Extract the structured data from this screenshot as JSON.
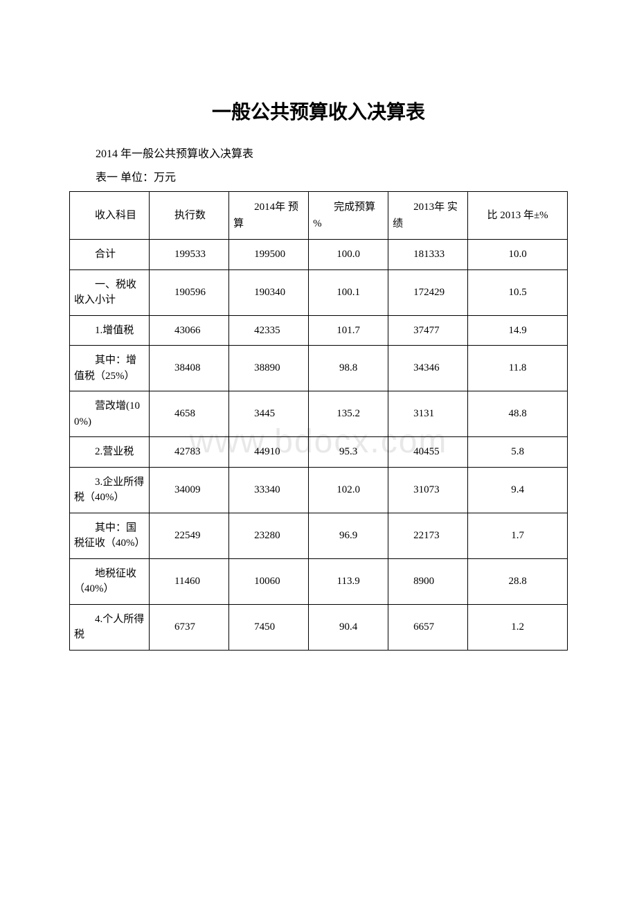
{
  "watermark": "www.bdocx.com",
  "page_title": "一般公共预算收入决算表",
  "subtitle": "2014 年一般公共预算收入决算表",
  "unit_line": "表一 单位：万元",
  "table": {
    "columns": [
      "收入科目",
      "执行数",
      "2014年\n预算",
      "完成预算\n%",
      "2013年\n实绩",
      "比\n2013 年±%"
    ],
    "rows": [
      {
        "item": "合计",
        "exec": "199533",
        "budget": "199500",
        "pct": "100.0",
        "actual": "181333",
        "yoy": "10.0"
      },
      {
        "item": "一、税收收入小计",
        "exec": "190596",
        "budget": "190340",
        "pct": "100.1",
        "actual": "172429",
        "yoy": "10.5"
      },
      {
        "item": "1.增值税",
        "exec": "43066",
        "budget": "42335",
        "pct": "101.7",
        "actual": "37477",
        "yoy": "14.9"
      },
      {
        "item": "其中：增值税（25%）",
        "exec": "38408",
        "budget": "38890",
        "pct": "98.8",
        "actual": "34346",
        "yoy": "11.8"
      },
      {
        "item": "营改增(100%)",
        "exec": "4658",
        "budget": "3445",
        "pct": "135.2",
        "actual": "3131",
        "yoy": "48.8"
      },
      {
        "item": "2.营业税",
        "exec": "42783",
        "budget": "44910",
        "pct": "95.3",
        "actual": "40455",
        "yoy": "5.8"
      },
      {
        "item": "3.企业所得税（40%）",
        "exec": "34009",
        "budget": "33340",
        "pct": "102.0",
        "actual": "31073",
        "yoy": "9.4"
      },
      {
        "item": "其中：国税征收（40%）",
        "exec": "22549",
        "budget": "23280",
        "pct": "96.9",
        "actual": "22173",
        "yoy": "1.7"
      },
      {
        "item": "地税征收（40%）",
        "exec": "11460",
        "budget": "10060",
        "pct": "113.9",
        "actual": "8900",
        "yoy": "28.8"
      },
      {
        "item": "4.个人所得税",
        "exec": "6737",
        "budget": "7450",
        "pct": "90.4",
        "actual": "6657",
        "yoy": "1.2"
      }
    ],
    "styling": {
      "border_color": "#000000",
      "font_size": 15,
      "header_indent_em": 2,
      "cell_indent_em": 2,
      "col_widths_pct": [
        16,
        16,
        16,
        16,
        16,
        20
      ]
    }
  }
}
